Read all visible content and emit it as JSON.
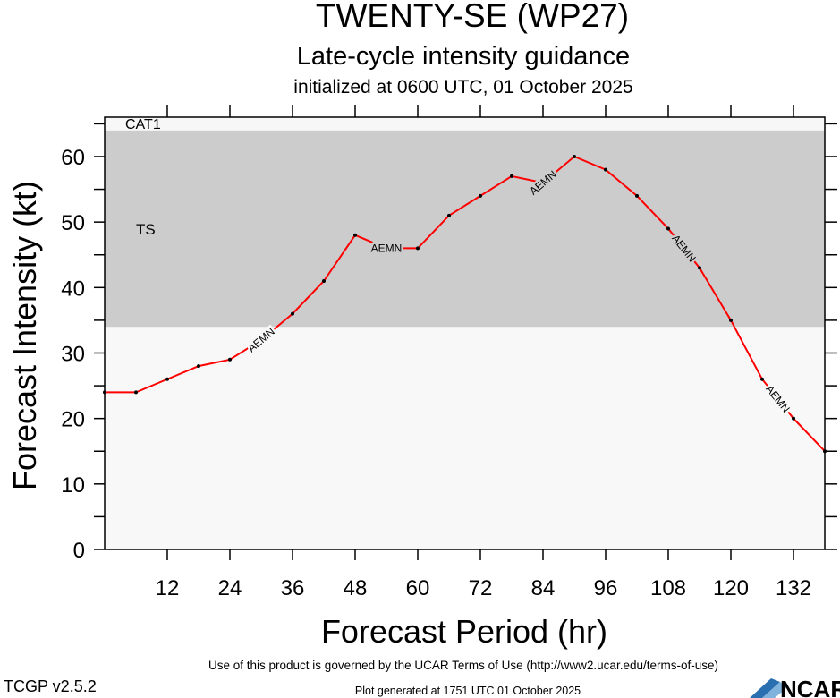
{
  "chart_data": {
    "type": "line",
    "title": "TWENTY-SE (WP27)",
    "subtitle": "Late-cycle intensity guidance",
    "subtitle2": "initialized at 0600 UTC, 01 October 2025",
    "xlabel": "Forecast Period (hr)",
    "ylabel": "Forecast Intensity (kt)",
    "xlim": [
      0,
      138
    ],
    "ylim": [
      0,
      66
    ],
    "x_ticks": [
      12,
      24,
      36,
      48,
      60,
      72,
      84,
      96,
      108,
      120,
      132
    ],
    "y_ticks": [
      0,
      10,
      20,
      30,
      40,
      50,
      60
    ],
    "grid": false,
    "bands": [
      {
        "label": "TS",
        "from": 34,
        "to": 64,
        "color": "#cccccc"
      },
      {
        "label": "CAT1",
        "from": 64,
        "to": 66,
        "color": "#f7f7f7"
      }
    ],
    "below_band_color": "#f8f8f8",
    "series": [
      {
        "name": "AEMN",
        "color": "#ff0000",
        "x": [
          0,
          6,
          12,
          18,
          24,
          30,
          36,
          42,
          48,
          54,
          60,
          66,
          72,
          78,
          84,
          90,
          96,
          102,
          108,
          114,
          120,
          126,
          132,
          138
        ],
        "values": [
          24,
          24,
          26,
          28,
          29,
          32,
          36,
          41,
          48,
          46,
          46,
          51,
          54,
          57,
          56,
          60,
          58,
          54,
          49,
          43,
          35,
          26,
          20,
          15
        ]
      }
    ]
  },
  "footer": {
    "terms": "Use of this product is governed by the UCAR Terms of Use (http://www2.ucar.edu/terms-of-use)",
    "version": "TCGP v2.5.2",
    "generated": "Plot generated at 1751 UTC   01 October 2025",
    "logo": "NCAR"
  }
}
